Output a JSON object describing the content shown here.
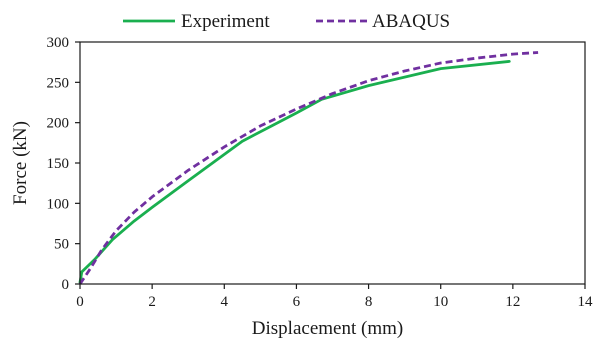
{
  "chart_data": {
    "type": "line",
    "xlabel": "Displacement (mm)",
    "ylabel": "Force (kN)",
    "xlim": [
      0,
      14
    ],
    "ylim": [
      0,
      300
    ],
    "xticks": [
      "0",
      "2",
      "4",
      "6",
      "8",
      "10",
      "12",
      "14"
    ],
    "yticks": [
      "0",
      "50",
      "100",
      "150",
      "200",
      "250",
      "300"
    ],
    "grid": false,
    "legend_position": "top-center",
    "series": [
      {
        "name": "Experiment",
        "color": "#1aaf4f",
        "style": "solid",
        "x": [
          0,
          0.05,
          0.4,
          0.9,
          1.5,
          2.0,
          3.0,
          4.5,
          6.0,
          6.7,
          8.0,
          10.0,
          11.9
        ],
        "y": [
          2,
          15,
          30,
          55,
          78,
          95,
          128,
          177,
          212,
          229,
          246,
          267,
          276
        ]
      },
      {
        "name": "ABAQUS",
        "color": "#7030a0",
        "style": "dashed",
        "x": [
          0,
          0.3,
          0.6,
          1.0,
          1.5,
          2.0,
          3.0,
          4.0,
          5.0,
          6.0,
          7.0,
          8.0,
          9.0,
          10.0,
          11.0,
          12.0,
          12.7
        ],
        "y": [
          0,
          20,
          42,
          66,
          89,
          108,
          141,
          170,
          196,
          217,
          236,
          252,
          264,
          274,
          280,
          285,
          287
        ]
      }
    ]
  }
}
